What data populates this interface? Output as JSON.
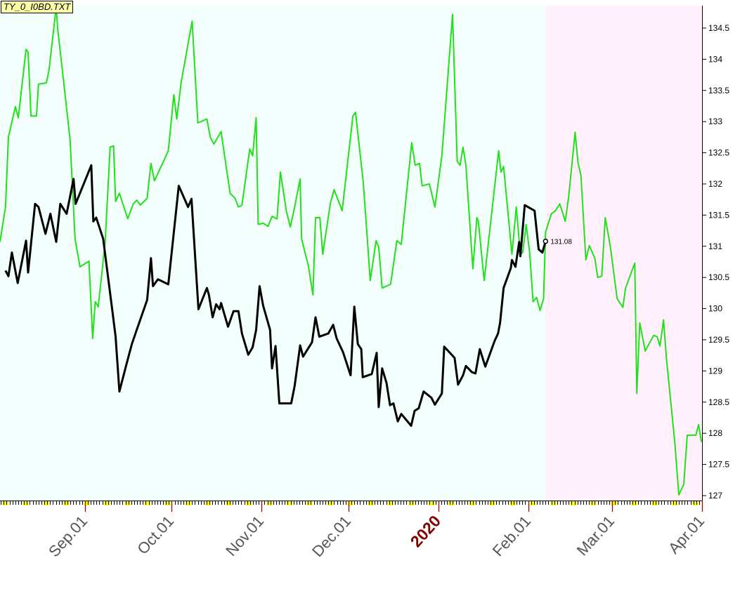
{
  "title": "TY_0_I0BD.TXT",
  "colors": {
    "history_bg": "#f2fffd",
    "forecast_bg": "#fff0fb",
    "green": "#22e01a",
    "black": "#000000",
    "axis_red": "#a00000",
    "year_label": "#800000",
    "weekend": "#ffff00"
  },
  "chart_data": {
    "type": "line",
    "title": "TY_0_I0BD.TXT",
    "x_unit": "days since 2019-08-01",
    "xlim": [
      1.7,
      244
    ],
    "ylim": [
      126.95,
      134.95
    ],
    "y_ticks": [
      127,
      127.5,
      128,
      128.5,
      129,
      129.5,
      130,
      130.5,
      131,
      131.5,
      132,
      132.5,
      133,
      133.5,
      134,
      134.5
    ],
    "y_tick_labels": [
      "127",
      "127.5",
      "128",
      "128.5",
      "129",
      "129.5",
      "130",
      "130.5",
      "131",
      "131.5",
      "132",
      "132.5",
      "133",
      "133.5",
      "134",
      "134.5"
    ],
    "x_ticks": [
      {
        "day": 31,
        "label": "Sep.01"
      },
      {
        "day": 61,
        "label": "Oct.01"
      },
      {
        "day": 92,
        "label": "Nov.01"
      },
      {
        "day": 122,
        "label": "Dec.01"
      },
      {
        "day": 153,
        "label": "2020",
        "year": true
      },
      {
        "day": 184,
        "label": "Feb.01"
      },
      {
        "day": 213,
        "label": "Mar.01"
      },
      {
        "day": 244,
        "label": "Apr.01"
      }
    ],
    "forecast_start_day": 190,
    "last_value_label": "131.08",
    "series": [
      {
        "name": "green",
        "color": "#22e01a",
        "points": [
          [
            1.7,
            131.07
          ],
          [
            3.6,
            131.63
          ],
          [
            4.6,
            132.75
          ],
          [
            7.0,
            133.24
          ],
          [
            8.0,
            133.06
          ],
          [
            10.7,
            134.16
          ],
          [
            11.4,
            134.11
          ],
          [
            12.4,
            133.09
          ],
          [
            14.3,
            133.09
          ],
          [
            15.0,
            133.6
          ],
          [
            17.7,
            133.62
          ],
          [
            18.6,
            133.82
          ],
          [
            21.1,
            134.84
          ],
          [
            21.6,
            134.5
          ],
          [
            23.5,
            133.71
          ],
          [
            25.9,
            132.7
          ],
          [
            27.6,
            131.12
          ],
          [
            29.3,
            130.67
          ],
          [
            32.4,
            130.76
          ],
          [
            33.7,
            129.52
          ],
          [
            34.6,
            130.11
          ],
          [
            35.6,
            130.03
          ],
          [
            38.0,
            131.07
          ],
          [
            39.7,
            132.59
          ],
          [
            40.9,
            132.61
          ],
          [
            41.6,
            131.72
          ],
          [
            42.9,
            131.85
          ],
          [
            45.8,
            131.44
          ],
          [
            47.7,
            131.68
          ],
          [
            48.9,
            131.74
          ],
          [
            50.1,
            131.66
          ],
          [
            52.5,
            131.77
          ],
          [
            53.8,
            132.33
          ],
          [
            55.0,
            132.05
          ],
          [
            59.8,
            132.53
          ],
          [
            61.7,
            133.43
          ],
          [
            62.7,
            133.04
          ],
          [
            64.2,
            133.62
          ],
          [
            68.0,
            134.61
          ],
          [
            70.0,
            132.98
          ],
          [
            73.1,
            133.04
          ],
          [
            74.3,
            132.75
          ],
          [
            75.5,
            132.64
          ],
          [
            78.0,
            132.84
          ],
          [
            81.1,
            131.85
          ],
          [
            82.8,
            131.77
          ],
          [
            84.0,
            131.63
          ],
          [
            85.2,
            131.66
          ],
          [
            87.9,
            132.56
          ],
          [
            88.9,
            132.45
          ],
          [
            90.1,
            133.06
          ],
          [
            90.8,
            131.35
          ],
          [
            92.5,
            131.37
          ],
          [
            94.2,
            131.32
          ],
          [
            95.6,
            131.48
          ],
          [
            97.3,
            131.44
          ],
          [
            98.5,
            132.19
          ],
          [
            100.5,
            131.57
          ],
          [
            101.9,
            131.31
          ],
          [
            103.4,
            131.63
          ],
          [
            105.3,
            132.08
          ],
          [
            105.8,
            131.12
          ],
          [
            108.2,
            130.67
          ],
          [
            109.7,
            130.22
          ],
          [
            110.6,
            131.46
          ],
          [
            112.1,
            131.46
          ],
          [
            113.1,
            130.87
          ],
          [
            115.7,
            131.68
          ],
          [
            117.0,
            131.91
          ],
          [
            119.8,
            131.57
          ],
          [
            123.5,
            133.09
          ],
          [
            124.4,
            133.15
          ],
          [
            127.1,
            132.02
          ],
          [
            129.5,
            130.45
          ],
          [
            131.5,
            131.09
          ],
          [
            132.4,
            130.99
          ],
          [
            133.6,
            130.33
          ],
          [
            136.5,
            130.39
          ],
          [
            138.7,
            131.09
          ],
          [
            140.2,
            131.03
          ],
          [
            143.8,
            132.66
          ],
          [
            145.0,
            132.3
          ],
          [
            146.5,
            132.33
          ],
          [
            147.4,
            131.97
          ],
          [
            149.9,
            132.0
          ],
          [
            151.8,
            131.63
          ],
          [
            154.2,
            132.45
          ],
          [
            157.9,
            134.72
          ],
          [
            159.5,
            132.36
          ],
          [
            160.5,
            132.3
          ],
          [
            161.5,
            132.59
          ],
          [
            162.5,
            132.3
          ],
          [
            164.9,
            130.64
          ],
          [
            166.3,
            131.46
          ],
          [
            166.8,
            131.4
          ],
          [
            168.8,
            130.45
          ],
          [
            173.8,
            132.53
          ],
          [
            174.6,
            132.19
          ],
          [
            175.5,
            132.28
          ],
          [
            178.4,
            130.87
          ],
          [
            179.9,
            131.63
          ],
          [
            181.3,
            130.87
          ],
          [
            182.1,
            130.9
          ],
          [
            183.3,
            131.35
          ],
          [
            184.5,
            130.9
          ],
          [
            185.7,
            130.11
          ],
          [
            186.9,
            130.18
          ],
          [
            188.1,
            129.97
          ],
          [
            189.3,
            130.16
          ],
          [
            190.0,
            131.23
          ],
          [
            192.0,
            131.52
          ],
          [
            193.4,
            131.57
          ],
          [
            194.9,
            131.68
          ],
          [
            196.8,
            131.4
          ],
          [
            198.0,
            131.8
          ],
          [
            200.2,
            132.83
          ],
          [
            201.2,
            132.34
          ],
          [
            202.2,
            132.14
          ],
          [
            203.9,
            130.78
          ],
          [
            205.1,
            131.01
          ],
          [
            207.0,
            130.81
          ],
          [
            208.0,
            130.5
          ],
          [
            209.4,
            130.52
          ],
          [
            210.6,
            131.46
          ],
          [
            212.3,
            131.01
          ],
          [
            214.7,
            130.16
          ],
          [
            216.7,
            130.02
          ],
          [
            217.6,
            130.33
          ],
          [
            220.8,
            130.73
          ],
          [
            221.5,
            128.64
          ],
          [
            222.5,
            129.77
          ],
          [
            224.4,
            129.32
          ],
          [
            227.3,
            129.57
          ],
          [
            228.5,
            129.55
          ],
          [
            229.5,
            129.4
          ],
          [
            230.7,
            129.82
          ],
          [
            231.7,
            129.21
          ],
          [
            234.6,
            127.86
          ],
          [
            236.0,
            127.01
          ],
          [
            237.7,
            127.18
          ],
          [
            238.9,
            127.97
          ],
          [
            241.9,
            127.97
          ],
          [
            242.8,
            128.14
          ],
          [
            243.8,
            127.86
          ]
        ]
      },
      {
        "name": "black",
        "color": "#000000",
        "points": [
          [
            3.6,
            130.61
          ],
          [
            4.6,
            130.52
          ],
          [
            5.8,
            130.9
          ],
          [
            7.8,
            130.41
          ],
          [
            10.7,
            131.09
          ],
          [
            11.4,
            130.58
          ],
          [
            13.8,
            131.68
          ],
          [
            15.0,
            131.63
          ],
          [
            17.4,
            131.2
          ],
          [
            19.1,
            131.52
          ],
          [
            21.1,
            131.07
          ],
          [
            22.5,
            131.68
          ],
          [
            24.7,
            131.52
          ],
          [
            27.1,
            132.08
          ],
          [
            27.8,
            131.68
          ],
          [
            33.2,
            132.3
          ],
          [
            33.9,
            131.4
          ],
          [
            34.9,
            131.46
          ],
          [
            37.3,
            131.12
          ],
          [
            40.4,
            129.99
          ],
          [
            41.6,
            129.55
          ],
          [
            42.9,
            128.67
          ],
          [
            45.3,
            129.1
          ],
          [
            47.2,
            129.43
          ],
          [
            48.9,
            129.66
          ],
          [
            52.5,
            130.14
          ],
          [
            53.8,
            130.81
          ],
          [
            54.5,
            130.36
          ],
          [
            56.2,
            130.47
          ],
          [
            59.8,
            130.39
          ],
          [
            63.4,
            131.97
          ],
          [
            66.6,
            131.63
          ],
          [
            67.8,
            131.76
          ],
          [
            70.2,
            129.99
          ],
          [
            73.1,
            130.33
          ],
          [
            73.8,
            130.22
          ],
          [
            75.1,
            129.86
          ],
          [
            76.3,
            130.07
          ],
          [
            77.5,
            129.99
          ],
          [
            78.0,
            130.09
          ],
          [
            80.4,
            129.71
          ],
          [
            82.3,
            129.96
          ],
          [
            84.0,
            129.96
          ],
          [
            85.2,
            129.6
          ],
          [
            87.4,
            129.26
          ],
          [
            88.9,
            129.38
          ],
          [
            90.1,
            129.66
          ],
          [
            91.3,
            130.36
          ],
          [
            92.5,
            130.05
          ],
          [
            94.9,
            129.66
          ],
          [
            95.6,
            129.04
          ],
          [
            96.8,
            129.4
          ],
          [
            98.1,
            128.48
          ],
          [
            102.2,
            128.48
          ],
          [
            103.4,
            128.76
          ],
          [
            105.3,
            129.41
          ],
          [
            106.3,
            129.23
          ],
          [
            109.4,
            129.46
          ],
          [
            110.6,
            129.86
          ],
          [
            111.9,
            129.55
          ],
          [
            115.0,
            129.6
          ],
          [
            116.7,
            129.74
          ],
          [
            117.9,
            129.52
          ],
          [
            120.1,
            129.3
          ],
          [
            122.7,
            128.93
          ],
          [
            124.0,
            130.03
          ],
          [
            125.2,
            129.43
          ],
          [
            126.4,
            129.35
          ],
          [
            126.9,
            128.9
          ],
          [
            130.0,
            128.95
          ],
          [
            131.7,
            129.29
          ],
          [
            132.4,
            128.42
          ],
          [
            133.6,
            129.04
          ],
          [
            135.1,
            128.81
          ],
          [
            136.3,
            128.45
          ],
          [
            137.5,
            128.48
          ],
          [
            139.0,
            128.19
          ],
          [
            140.2,
            128.31
          ],
          [
            143.6,
            128.12
          ],
          [
            144.8,
            128.36
          ],
          [
            146.2,
            128.4
          ],
          [
            147.9,
            128.67
          ],
          [
            150.6,
            128.57
          ],
          [
            151.8,
            128.46
          ],
          [
            154.2,
            128.64
          ],
          [
            155.0,
            129.39
          ],
          [
            158.6,
            129.21
          ],
          [
            159.8,
            128.78
          ],
          [
            161.5,
            128.93
          ],
          [
            162.5,
            129.08
          ],
          [
            164.6,
            128.98
          ],
          [
            165.8,
            128.96
          ],
          [
            167.3,
            129.35
          ],
          [
            169.2,
            129.07
          ],
          [
            172.4,
            129.48
          ],
          [
            173.6,
            129.6
          ],
          [
            174.3,
            129.77
          ],
          [
            175.5,
            130.33
          ],
          [
            178.0,
            130.65
          ],
          [
            178.4,
            130.78
          ],
          [
            179.6,
            130.67
          ],
          [
            180.9,
            131.07
          ],
          [
            181.3,
            130.84
          ],
          [
            182.8,
            131.66
          ],
          [
            186.2,
            131.57
          ],
          [
            187.6,
            130.95
          ],
          [
            188.9,
            130.9
          ],
          [
            190.0,
            131.08
          ]
        ]
      }
    ]
  }
}
